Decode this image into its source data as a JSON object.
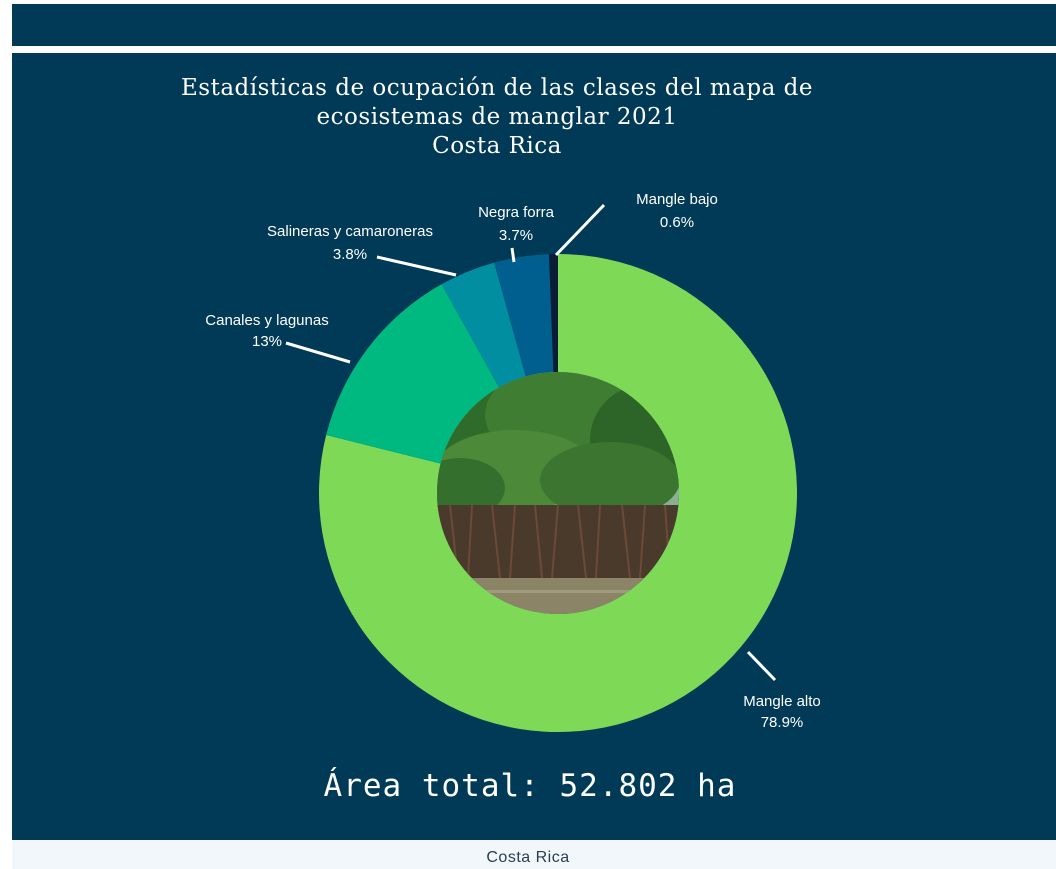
{
  "chart_data": {
    "type": "pie",
    "title_lines": [
      "Estadísticas de ocupación de las clases del mapa de",
      "ecosistemas de manglar 2021",
      "Costa Rica"
    ],
    "slices": [
      {
        "name": "Mangle alto",
        "value": 78.9,
        "label": "78.9%",
        "color": "#7ed957"
      },
      {
        "name": "Canales y lagunas",
        "value": 13,
        "label": "13%",
        "color": "#00b980"
      },
      {
        "name": "Salineras  y camaroneras",
        "value": 3.8,
        "label": "3.8%",
        "color": "#008ea0"
      },
      {
        "name": "Negra forra",
        "value": 3.7,
        "label": "3.7%",
        "color": "#005f8f"
      },
      {
        "name": "Mangle bajo",
        "value": 0.6,
        "label": "0.6%",
        "color": "#0b1c36"
      }
    ],
    "total_label": "Área total: 52.802 ha",
    "center_image": "mangrove-photo"
  },
  "footer": {
    "label": "Costa Rica"
  }
}
